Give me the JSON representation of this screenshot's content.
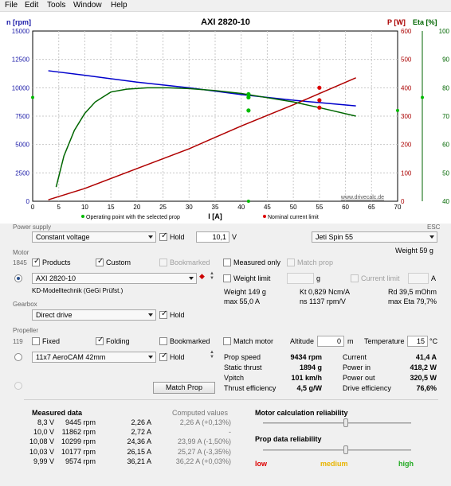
{
  "menu": [
    "File",
    "Edit",
    "Tools",
    "Window",
    "Help"
  ],
  "chart_data": {
    "type": "line",
    "title": "AXI 2820-10",
    "left_axis_label": "n [rpm]",
    "right_axis1_label": "P [W]",
    "right_axis2_label": "Eta [%]",
    "xlabel": "I [A]",
    "x_ticks": [
      "0",
      "5",
      "10",
      "15",
      "20",
      "25",
      "30",
      "35",
      "40",
      "45",
      "50",
      "55",
      "60",
      "65",
      "70"
    ],
    "left_ticks": [
      "0",
      "2500",
      "5000",
      "7500",
      "10000",
      "12500",
      "15000"
    ],
    "p_ticks": [
      "0",
      "100",
      "200",
      "300",
      "400",
      "500",
      "600"
    ],
    "eta_ticks": [
      "40",
      "50",
      "60",
      "70",
      "80",
      "90",
      "100"
    ],
    "xlim": [
      0,
      70
    ],
    "ylim_rpm": [
      0,
      15000
    ],
    "ylim_power": [
      0,
      600
    ],
    "ylim_eta": [
      40,
      100
    ],
    "series": [
      {
        "axis": "rpm",
        "color": "#0000cc",
        "x": [
          3,
          10,
          20,
          30,
          40,
          50,
          62
        ],
        "y": [
          11500,
          11100,
          10500,
          10000,
          9400,
          8900,
          8400
        ]
      },
      {
        "axis": "power",
        "color": "#b00000",
        "x": [
          3,
          10,
          20,
          30,
          40,
          50,
          62
        ],
        "y": [
          5,
          45,
          115,
          185,
          265,
          340,
          435
        ]
      },
      {
        "axis": "eta",
        "color": "#006600",
        "x": [
          4.5,
          6,
          8,
          10,
          12,
          15,
          18,
          22,
          26,
          30,
          35,
          40,
          45,
          50,
          55,
          62
        ],
        "y": [
          45,
          56,
          65,
          71,
          75,
          78.5,
          79.5,
          80,
          80,
          79.7,
          79,
          78,
          76.5,
          75,
          73,
          70
        ]
      }
    ],
    "markers": [
      {
        "axis": "rpm",
        "x": 41.4,
        "y": 9434,
        "color": "#00bb00"
      },
      {
        "axis": "power",
        "x": 41.4,
        "y": 320,
        "color": "#00bb00"
      },
      {
        "axis": "eta",
        "x": 41.4,
        "y": 76.6,
        "color": "#00bb00"
      },
      {
        "axis": "rpm",
        "x": 55,
        "y": 8900,
        "color": "#dd0000"
      },
      {
        "axis": "power",
        "x": 55,
        "y": 400,
        "color": "#dd0000"
      },
      {
        "axis": "eta",
        "x": 55,
        "y": 73,
        "color": "#dd0000"
      }
    ],
    "watermark": "www.drivecalc.de",
    "legend": [
      {
        "label": "Operating point with the selected prop",
        "color": "#00bb00"
      },
      {
        "label": "Nominal current limit",
        "color": "#dd0000"
      }
    ]
  },
  "power_supply": {
    "section": "Power supply",
    "mode": "Constant voltage",
    "hold_label": "Hold",
    "voltage": "10,1",
    "voltage_unit": "V",
    "esc_section": "ESC",
    "esc": "Jeti Spin 55",
    "esc_weight": "Weight 59 g"
  },
  "motor": {
    "section": "Motor",
    "count": "1845",
    "products_label": "Products",
    "custom_label": "Custom",
    "bookmarked_label": "Bookmarked",
    "measured_only_label": "Measured only",
    "match_prop_label": "Match prop",
    "name": "AXI 2820-10",
    "source": "KD-Modelltechnik (GeGi Prüfst.)",
    "weight_limit_label": "Weight limit",
    "weight_unit": "g",
    "current_limit_label": "Current limit",
    "current_unit": "A",
    "weight": "Weight 149 g",
    "max_current": "max 55,0 A",
    "kt": "Kt 0,829 Ncm/A",
    "ns": "ns 1137 rpm/V",
    "rd": "Rd 39,5 mOhm",
    "max_eta": "max Eta 79,7%"
  },
  "gearbox": {
    "section": "Gearbox",
    "mode": "Direct drive",
    "hold_label": "Hold"
  },
  "propeller": {
    "section": "Propeller",
    "count": "119",
    "fixed_label": "Fixed",
    "folding_label": "Folding",
    "bookmarked_label": "Bookmarked",
    "match_motor_label": "Match motor",
    "altitude_label": "Altitude",
    "altitude": "0",
    "altitude_unit": "m",
    "temperature_label": "Temperature",
    "temperature": "15",
    "temperature_unit": "°C",
    "name": "11x7 AeroCAM 42mm",
    "hold_label": "Hold",
    "match_button": "Match Prop"
  },
  "results": {
    "prop_speed_label": "Prop speed",
    "prop_speed": "9434 rpm",
    "static_thrust_label": "Static thrust",
    "static_thrust": "1894 g",
    "vpitch_label": "Vpitch",
    "vpitch": "101 km/h",
    "thrust_eff_label": "Thrust efficiency",
    "thrust_eff": "4,5 g/W",
    "current_label": "Current",
    "current": "41,4 A",
    "power_in_label": "Power in",
    "power_in": "418,2 W",
    "power_out_label": "Power out",
    "power_out": "320,5 W",
    "drive_eff_label": "Drive efficiency",
    "drive_eff": "76,6%"
  },
  "measured": {
    "title": "Measured data",
    "computed_title": "Computed values",
    "rows": [
      {
        "v": "8,3 V",
        "rpm": "9445 rpm",
        "a": "2,26 A",
        "c": "2,26 A (+0,13%)"
      },
      {
        "v": "10,0 V",
        "rpm": "11862 rpm",
        "a": "2,72 A",
        "c": "-"
      },
      {
        "v": "10,08 V",
        "rpm": "10299 rpm",
        "a": "24,36 A",
        "c": "23,99 A (-1,50%)"
      },
      {
        "v": "10,03 V",
        "rpm": "10177 rpm",
        "a": "26,15 A",
        "c": "25,27 A (-3,35%)"
      },
      {
        "v": "9,99 V",
        "rpm": "9574 rpm",
        "a": "36,21 A",
        "c": "36,22 A (+0,03%)"
      }
    ]
  },
  "reliability": {
    "motor_title": "Motor calculation reliability",
    "motor_level": 0.56,
    "prop_title": "Prop data reliability",
    "prop_level": 0.56,
    "low": "low",
    "medium": "medium",
    "high": "high",
    "low_color": "#dd0000",
    "medium_color": "#e8b400",
    "high_color": "#22aa22"
  }
}
